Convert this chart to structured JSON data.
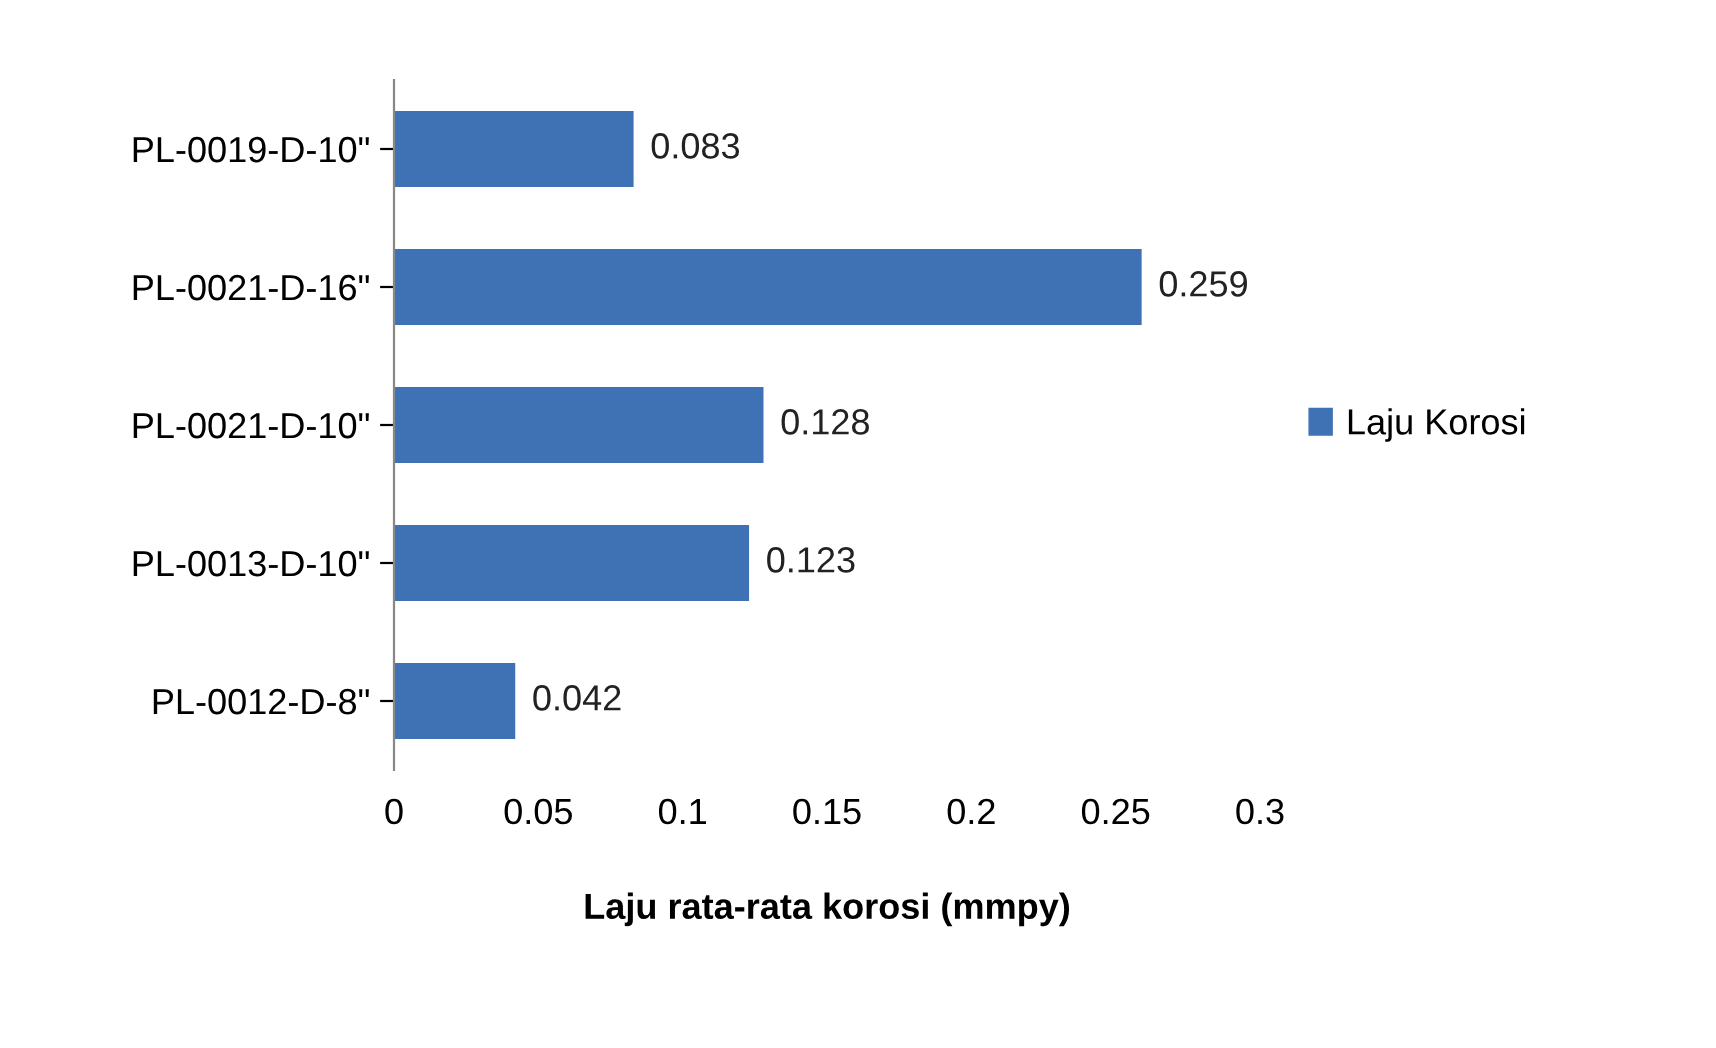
{
  "chart_data": {
    "type": "bar",
    "orientation": "horizontal",
    "categories": [
      "PL-0019-D-10\"",
      "PL-0021-D-16\"",
      "PL-0021-D-10\"",
      "PL-0013-D-10\"",
      "PL-0012-D-8\""
    ],
    "series": [
      {
        "name": "Laju Korosi",
        "color": "#3f72b5",
        "values": [
          0.083,
          0.259,
          0.128,
          0.123,
          0.042
        ]
      }
    ],
    "xlabel": "Laju rata-rata korosi (mmpy)",
    "xlim": [
      0,
      0.3
    ],
    "xticks": [
      0,
      0.05,
      0.1,
      0.15,
      0.2,
      0.25,
      0.3
    ],
    "data_labels": true,
    "legend": "right",
    "grid": false
  }
}
